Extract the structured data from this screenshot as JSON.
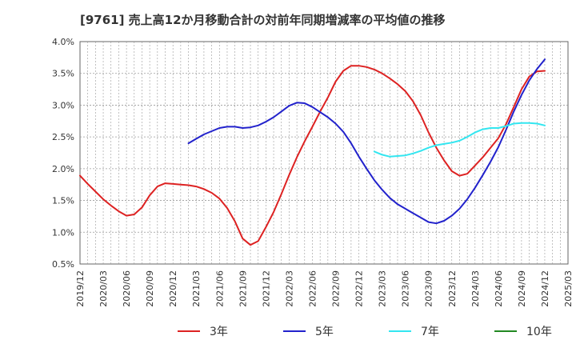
{
  "title": "[9761]  売上高12か月移動合計の対前年同期増減率の平均値の推移",
  "colors": {
    "3年": "#dd2222",
    "5年": "#2222cc",
    "7年": "#33e6f0",
    "10年": "#228822"
  },
  "chart_data": {
    "type": "line",
    "title": "[9761]  売上高12か月移動合計の対前年同期増減率の平均値の推移",
    "xlabel": "",
    "ylabel": "",
    "ylim": [
      0.5,
      4.0
    ],
    "y_ticks": [
      "0.5%",
      "1.0%",
      "1.5%",
      "2.0%",
      "2.5%",
      "3.0%",
      "3.5%",
      "4.0%"
    ],
    "x_ticks": [
      "2019/12",
      "2020/03",
      "2020/06",
      "2020/09",
      "2020/12",
      "2021/03",
      "2021/06",
      "2021/09",
      "2021/12",
      "2022/03",
      "2022/06",
      "2022/09",
      "2022/12",
      "2023/03",
      "2023/06",
      "2023/09",
      "2023/12",
      "2024/03",
      "2024/06",
      "2024/09",
      "2024/12",
      "2025/03"
    ],
    "grid": true,
    "legend_position": "bottom",
    "series": [
      {
        "name": "3年",
        "color": "#dd2222",
        "points": [
          [
            "2019/12",
            1.89
          ],
          [
            "2020/01",
            1.76
          ],
          [
            "2020/02",
            1.64
          ],
          [
            "2020/03",
            1.52
          ],
          [
            "2020/04",
            1.42
          ],
          [
            "2020/05",
            1.33
          ],
          [
            "2020/06",
            1.26
          ],
          [
            "2020/07",
            1.28
          ],
          [
            "2020/08",
            1.39
          ],
          [
            "2020/09",
            1.58
          ],
          [
            "2020/10",
            1.72
          ],
          [
            "2020/11",
            1.77
          ],
          [
            "2020/12",
            1.76
          ],
          [
            "2021/01",
            1.75
          ],
          [
            "2021/02",
            1.74
          ],
          [
            "2021/03",
            1.72
          ],
          [
            "2021/04",
            1.68
          ],
          [
            "2021/05",
            1.62
          ],
          [
            "2021/06",
            1.53
          ],
          [
            "2021/07",
            1.38
          ],
          [
            "2021/08",
            1.17
          ],
          [
            "2021/09",
            0.9
          ],
          [
            "2021/10",
            0.8
          ],
          [
            "2021/11",
            0.86
          ],
          [
            "2021/12",
            1.08
          ],
          [
            "2022/01",
            1.32
          ],
          [
            "2022/02",
            1.6
          ],
          [
            "2022/03",
            1.9
          ],
          [
            "2022/04",
            2.18
          ],
          [
            "2022/05",
            2.43
          ],
          [
            "2022/06",
            2.66
          ],
          [
            "2022/07",
            2.9
          ],
          [
            "2022/08",
            3.12
          ],
          [
            "2022/09",
            3.37
          ],
          [
            "2022/10",
            3.54
          ],
          [
            "2022/11",
            3.62
          ],
          [
            "2022/12",
            3.62
          ],
          [
            "2023/01",
            3.6
          ],
          [
            "2023/02",
            3.56
          ],
          [
            "2023/03",
            3.5
          ],
          [
            "2023/04",
            3.42
          ],
          [
            "2023/05",
            3.33
          ],
          [
            "2023/06",
            3.22
          ],
          [
            "2023/07",
            3.06
          ],
          [
            "2023/08",
            2.84
          ],
          [
            "2023/09",
            2.57
          ],
          [
            "2023/10",
            2.33
          ],
          [
            "2023/11",
            2.13
          ],
          [
            "2023/12",
            1.96
          ],
          [
            "2024/01",
            1.89
          ],
          [
            "2024/02",
            1.92
          ],
          [
            "2024/03",
            2.05
          ],
          [
            "2024/04",
            2.18
          ],
          [
            "2024/05",
            2.33
          ],
          [
            "2024/06",
            2.48
          ],
          [
            "2024/07",
            2.7
          ],
          [
            "2024/08",
            2.97
          ],
          [
            "2024/09",
            3.25
          ],
          [
            "2024/10",
            3.45
          ],
          [
            "2024/11",
            3.53
          ],
          [
            "2024/12",
            3.54
          ]
        ]
      },
      {
        "name": "5年",
        "color": "#2222cc",
        "points": [
          [
            "2021/02",
            2.4
          ],
          [
            "2021/03",
            2.47
          ],
          [
            "2021/04",
            2.54
          ],
          [
            "2021/05",
            2.59
          ],
          [
            "2021/06",
            2.64
          ],
          [
            "2021/07",
            2.66
          ],
          [
            "2021/08",
            2.66
          ],
          [
            "2021/09",
            2.64
          ],
          [
            "2021/10",
            2.65
          ],
          [
            "2021/11",
            2.68
          ],
          [
            "2021/12",
            2.74
          ],
          [
            "2022/01",
            2.81
          ],
          [
            "2022/02",
            2.9
          ],
          [
            "2022/03",
            2.99
          ],
          [
            "2022/04",
            3.04
          ],
          [
            "2022/05",
            3.03
          ],
          [
            "2022/06",
            2.97
          ],
          [
            "2022/07",
            2.89
          ],
          [
            "2022/08",
            2.81
          ],
          [
            "2022/09",
            2.71
          ],
          [
            "2022/10",
            2.58
          ],
          [
            "2022/11",
            2.4
          ],
          [
            "2022/12",
            2.19
          ],
          [
            "2023/01",
            2.0
          ],
          [
            "2023/02",
            1.82
          ],
          [
            "2023/03",
            1.67
          ],
          [
            "2023/04",
            1.54
          ],
          [
            "2023/05",
            1.44
          ],
          [
            "2023/06",
            1.37
          ],
          [
            "2023/07",
            1.3
          ],
          [
            "2023/08",
            1.23
          ],
          [
            "2023/09",
            1.16
          ],
          [
            "2023/10",
            1.14
          ],
          [
            "2023/11",
            1.18
          ],
          [
            "2023/12",
            1.26
          ],
          [
            "2024/01",
            1.37
          ],
          [
            "2024/02",
            1.52
          ],
          [
            "2024/03",
            1.7
          ],
          [
            "2024/04",
            1.9
          ],
          [
            "2024/05",
            2.11
          ],
          [
            "2024/06",
            2.34
          ],
          [
            "2024/07",
            2.61
          ],
          [
            "2024/08",
            2.9
          ],
          [
            "2024/09",
            3.16
          ],
          [
            "2024/10",
            3.39
          ],
          [
            "2024/11",
            3.57
          ],
          [
            "2024/12",
            3.72
          ]
        ]
      },
      {
        "name": "7年",
        "color": "#33e6f0",
        "points": [
          [
            "2023/02",
            2.27
          ],
          [
            "2023/03",
            2.22
          ],
          [
            "2023/04",
            2.19
          ],
          [
            "2023/05",
            2.2
          ],
          [
            "2023/06",
            2.21
          ],
          [
            "2023/07",
            2.24
          ],
          [
            "2023/08",
            2.28
          ],
          [
            "2023/09",
            2.33
          ],
          [
            "2023/10",
            2.37
          ],
          [
            "2023/11",
            2.39
          ],
          [
            "2023/12",
            2.41
          ],
          [
            "2024/01",
            2.44
          ],
          [
            "2024/02",
            2.5
          ],
          [
            "2024/03",
            2.57
          ],
          [
            "2024/04",
            2.62
          ],
          [
            "2024/05",
            2.64
          ],
          [
            "2024/06",
            2.64
          ],
          [
            "2024/07",
            2.67
          ],
          [
            "2024/08",
            2.71
          ],
          [
            "2024/09",
            2.72
          ],
          [
            "2024/10",
            2.72
          ],
          [
            "2024/11",
            2.71
          ],
          [
            "2024/12",
            2.68
          ]
        ]
      },
      {
        "name": "10年",
        "color": "#228822",
        "points": []
      }
    ]
  }
}
